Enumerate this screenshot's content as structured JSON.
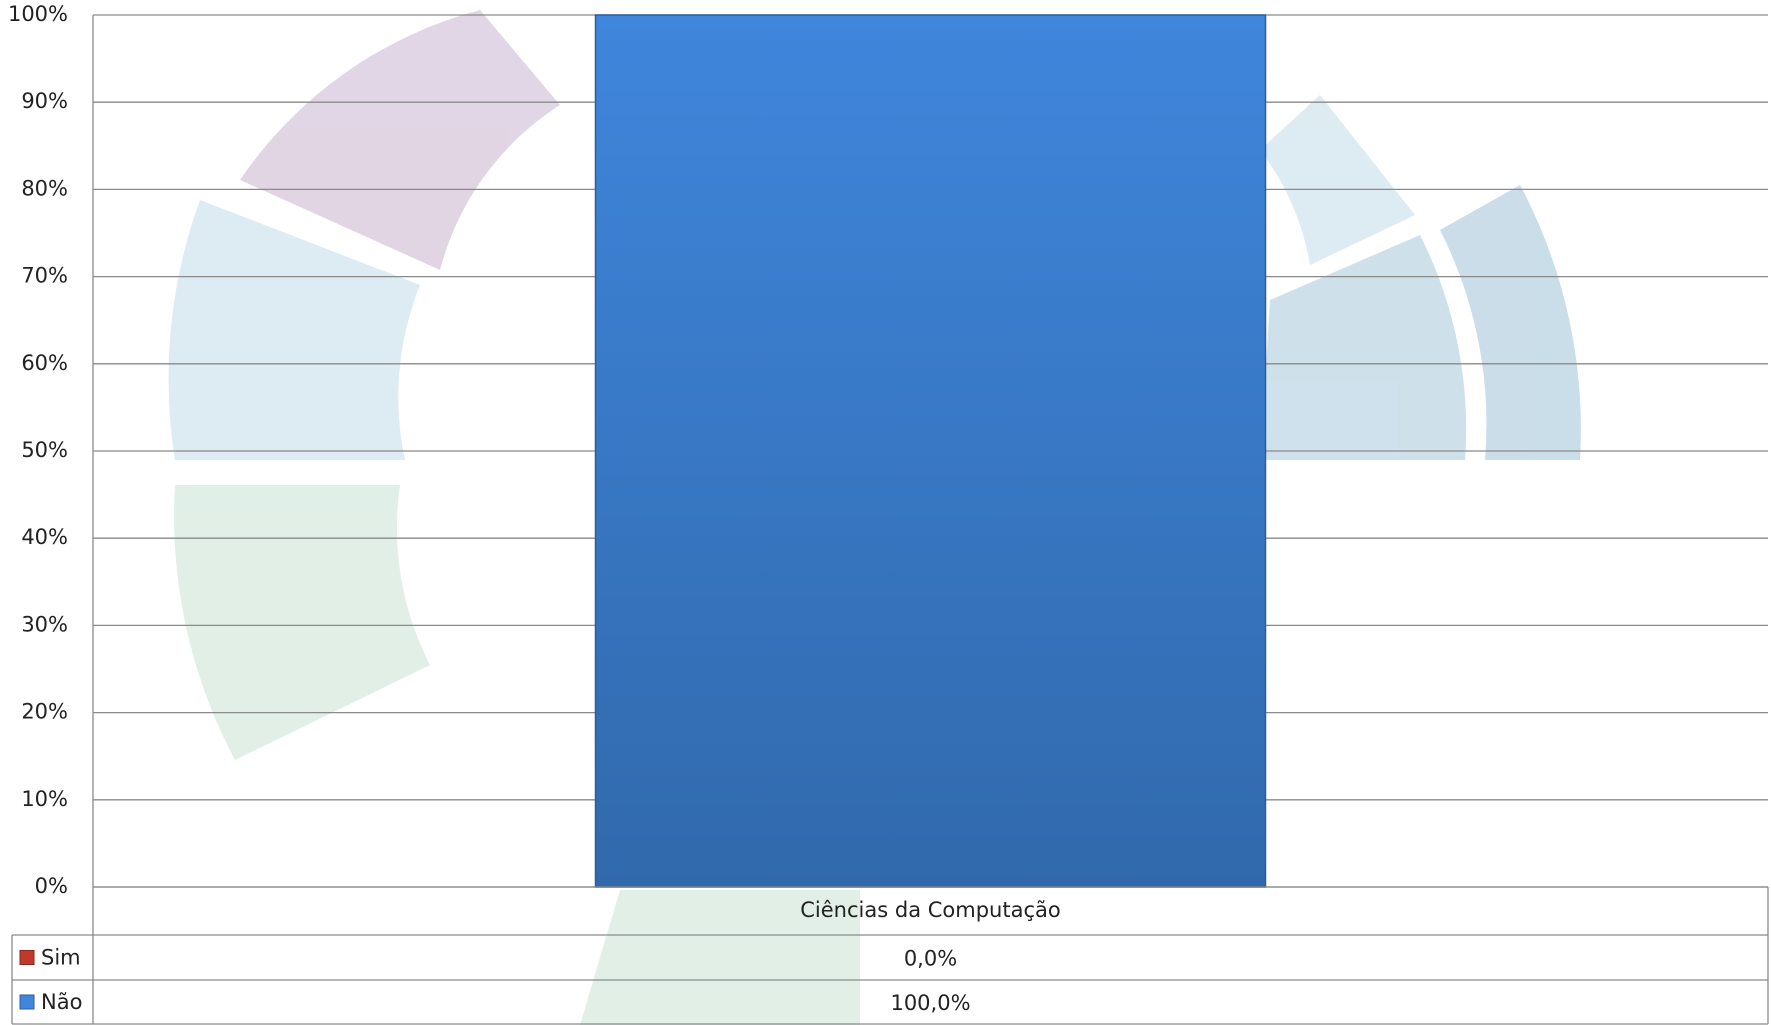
{
  "chart_data": {
    "type": "bar",
    "stacked": true,
    "categories": [
      "Ciências da Computação"
    ],
    "series": [
      {
        "name": "Sim",
        "color": "#c0392b",
        "values": [
          0
        ],
        "value_labels": [
          "0,0%"
        ]
      },
      {
        "name": "Não",
        "color": "#3f86dc",
        "values": [
          100
        ],
        "value_labels": [
          "100,0%"
        ]
      }
    ],
    "ylim": [
      0,
      100
    ],
    "yticks": [
      {
        "value": 0,
        "label": "0%"
      },
      {
        "value": 10,
        "label": "10%"
      },
      {
        "value": 20,
        "label": "20%"
      },
      {
        "value": 30,
        "label": "30%"
      },
      {
        "value": 40,
        "label": "40%"
      },
      {
        "value": 50,
        "label": "50%"
      },
      {
        "value": 60,
        "label": "60%"
      },
      {
        "value": 70,
        "label": "70%"
      },
      {
        "value": 80,
        "label": "80%"
      },
      {
        "value": 90,
        "label": "90%"
      },
      {
        "value": 100,
        "label": "100%"
      }
    ],
    "grid": true
  }
}
